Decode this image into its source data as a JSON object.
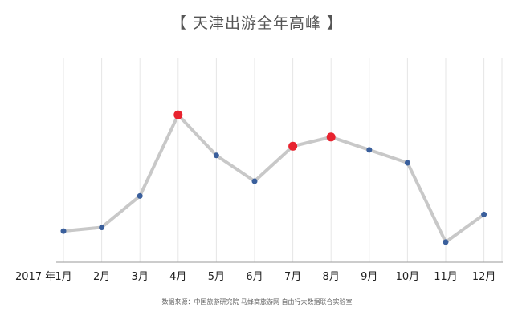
{
  "chart_data": {
    "type": "line",
    "title": "【 天津出游全年高峰 】",
    "year_label": "2017 年",
    "categories": [
      "1月",
      "2月",
      "3月",
      "4月",
      "5月",
      "6月",
      "7月",
      "8月",
      "9月",
      "10月",
      "11月",
      "12月"
    ],
    "series": [
      {
        "values": [
          13,
          15,
          32,
          76,
          54,
          40,
          59,
          64,
          57,
          50,
          7,
          22
        ]
      }
    ],
    "highlight_indices": [
      3,
      6,
      7
    ],
    "ylim": [
      0,
      100
    ],
    "grid": "vertical",
    "legend": "none",
    "colors": {
      "line": "#c8c8c8",
      "point": "#3a5f9c",
      "highlight": "#e8232f",
      "grid": "#e6e6e6",
      "axis": "#9a9a9a"
    },
    "source": "数据来源：中国旅游研究院 马蜂窝旅游网 自由行大数据联合实验室"
  }
}
